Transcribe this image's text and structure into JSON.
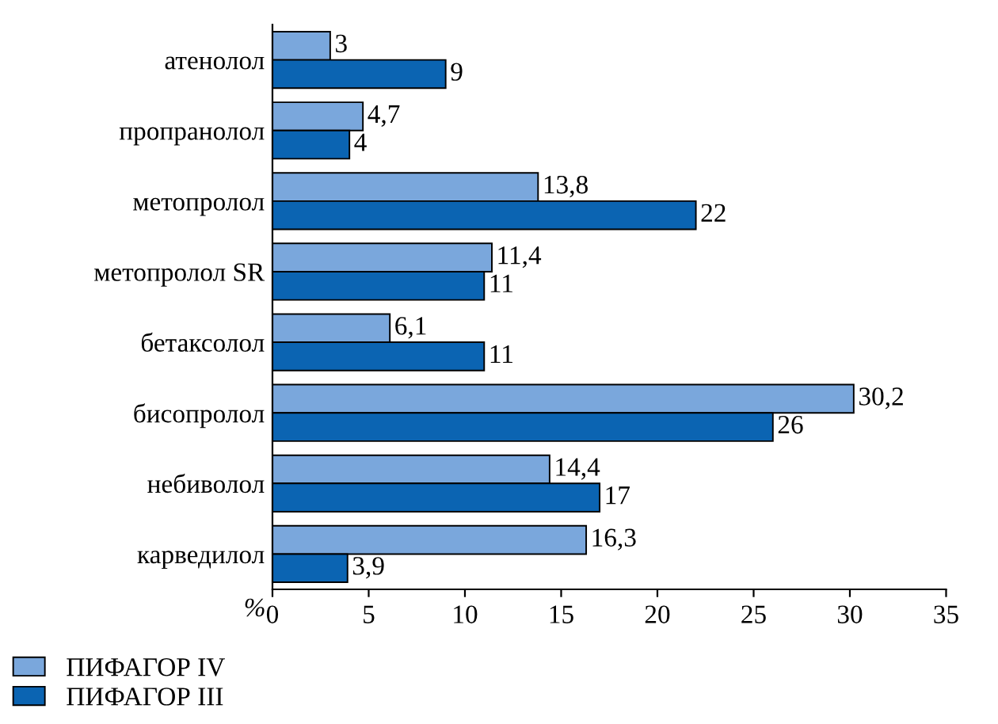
{
  "chart_data": {
    "type": "bar",
    "orientation": "horizontal",
    "xlabel": "%",
    "categories": [
      "атенолол",
      "пропранолол",
      "метопролол",
      "метопролол SR",
      "бетаксолол",
      "бисопролол",
      "небиволол",
      "карведилол"
    ],
    "series": [
      {
        "name": "ПИФАГОР IV",
        "color": "#7aa7dc",
        "values": [
          3,
          4.7,
          13.8,
          11.4,
          6.1,
          30.2,
          14.4,
          16.3
        ],
        "value_labels": [
          "3",
          "4,7",
          "13,8",
          "11,4",
          "6,1",
          "30,2",
          "14,4",
          "16,3"
        ]
      },
      {
        "name": "ПИФАГОР III",
        "color": "#0b64b2",
        "values": [
          9,
          4,
          22,
          11,
          11,
          26,
          17,
          3.9
        ],
        "value_labels": [
          "9",
          "4",
          "22",
          "11",
          "11",
          "26",
          "17",
          "3,9"
        ]
      }
    ],
    "xlim": [
      0,
      35
    ],
    "xticks": [
      0,
      5,
      10,
      15,
      20,
      25,
      30,
      35
    ],
    "grid": false,
    "legend": "bottom left"
  }
}
